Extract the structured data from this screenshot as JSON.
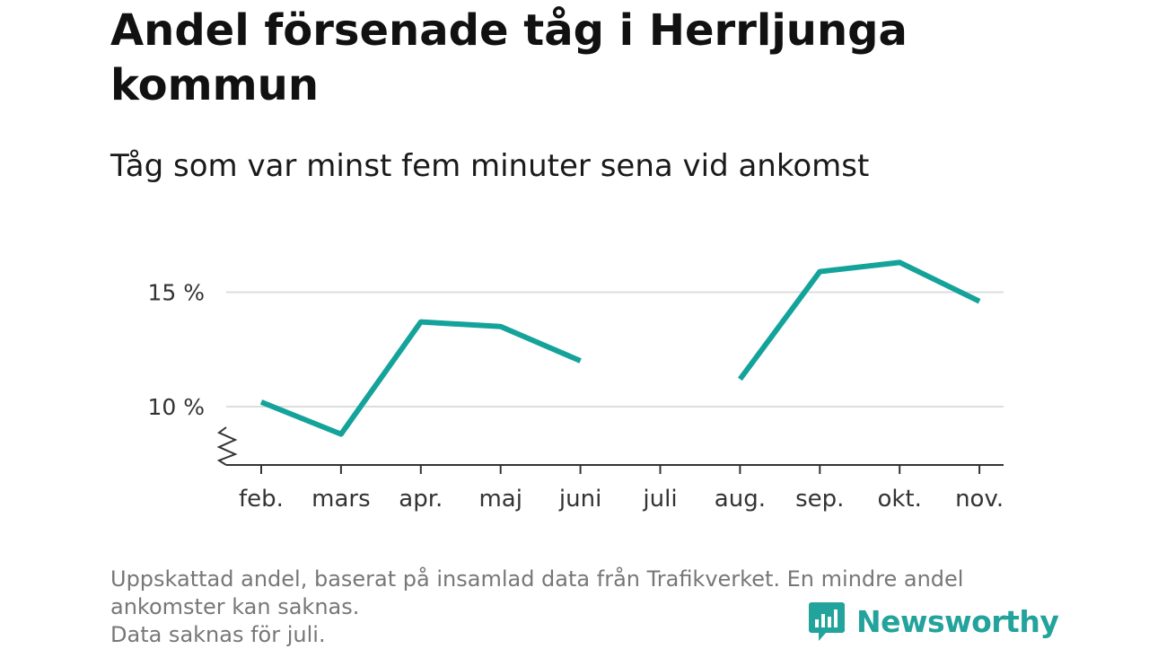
{
  "header": {
    "title": "Andel försenade tåg i Herrljunga kommun",
    "subtitle": "Tåg som var minst fem minuter sena vid ankomst"
  },
  "chart_data": {
    "type": "line",
    "title": "Andel försenade tåg i Herrljunga kommun",
    "subtitle": "Tåg som var minst fem minuter sena vid ankomst",
    "categories": [
      "feb.",
      "mars",
      "apr.",
      "maj",
      "juni",
      "juli",
      "aug.",
      "sep.",
      "okt.",
      "nov."
    ],
    "series": [
      {
        "values": [
          10.2,
          8.8,
          13.7,
          13.5,
          12.0,
          null,
          11.2,
          15.9,
          16.3,
          14.6
        ],
        "color": "#14a39a"
      }
    ],
    "yticks": [
      10,
      15
    ],
    "ytick_labels": [
      "10 %",
      "15 %"
    ],
    "ylim": [
      7.5,
      18
    ],
    "grid": true,
    "axis_break": true
  },
  "footnote": {
    "lines": [
      "Uppskattad andel, baserat på insamlad data från Trafikverket. En mindre andel",
      "ankomster kan saknas.",
      "Data saknas för juli."
    ]
  },
  "brand": {
    "name": "Newsworthy",
    "icon": "newsworthy-bar-chart-icon",
    "color": "#22a39b"
  }
}
